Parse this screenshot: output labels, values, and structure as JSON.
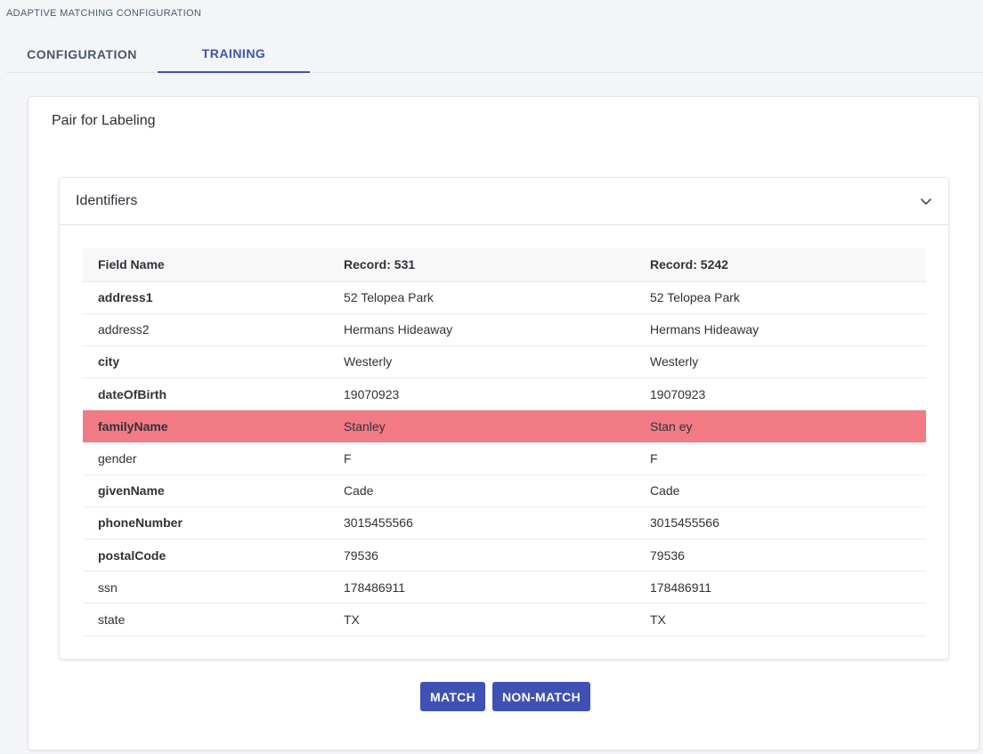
{
  "app": {
    "title": "ADAPTIVE MATCHING CONFIGURATION"
  },
  "tabs": [
    {
      "label": "CONFIGURATION",
      "active": false
    },
    {
      "label": "TRAINING",
      "active": true
    }
  ],
  "card": {
    "title": "Pair for Labeling",
    "panel": {
      "title": "Identifiers",
      "expand_icon": "chevron-down-icon",
      "columns": [
        "Field Name",
        "Record: 531",
        "Record: 5242"
      ],
      "rows": [
        {
          "field": "address1",
          "left": "52 Telopea Park",
          "right": "52 Telopea Park",
          "bold": true,
          "mismatch": false
        },
        {
          "field": "address2",
          "left": "Hermans Hideaway",
          "right": "Hermans Hideaway",
          "bold": false,
          "mismatch": false
        },
        {
          "field": "city",
          "left": "Westerly",
          "right": "Westerly",
          "bold": true,
          "mismatch": false
        },
        {
          "field": "dateOfBirth",
          "left": "19070923",
          "right": "19070923",
          "bold": true,
          "mismatch": false
        },
        {
          "field": "familyName",
          "left": "Stanley",
          "right": "Stan ey",
          "bold": true,
          "mismatch": true
        },
        {
          "field": "gender",
          "left": "F",
          "right": "F",
          "bold": false,
          "mismatch": false
        },
        {
          "field": "givenName",
          "left": "Cade",
          "right": "Cade",
          "bold": true,
          "mismatch": false
        },
        {
          "field": "phoneNumber",
          "left": "3015455566",
          "right": "3015455566",
          "bold": true,
          "mismatch": false
        },
        {
          "field": "postalCode",
          "left": "79536",
          "right": "79536",
          "bold": true,
          "mismatch": false
        },
        {
          "field": "ssn",
          "left": "178486911",
          "right": "178486911",
          "bold": false,
          "mismatch": false
        },
        {
          "field": "state",
          "left": "TX",
          "right": "TX",
          "bold": false,
          "mismatch": false
        }
      ]
    }
  },
  "actions": {
    "match_label": "MATCH",
    "non_match_label": "NON-MATCH"
  },
  "colors": {
    "accent": "#3f51b5",
    "mismatch_row": "#f27a84"
  }
}
